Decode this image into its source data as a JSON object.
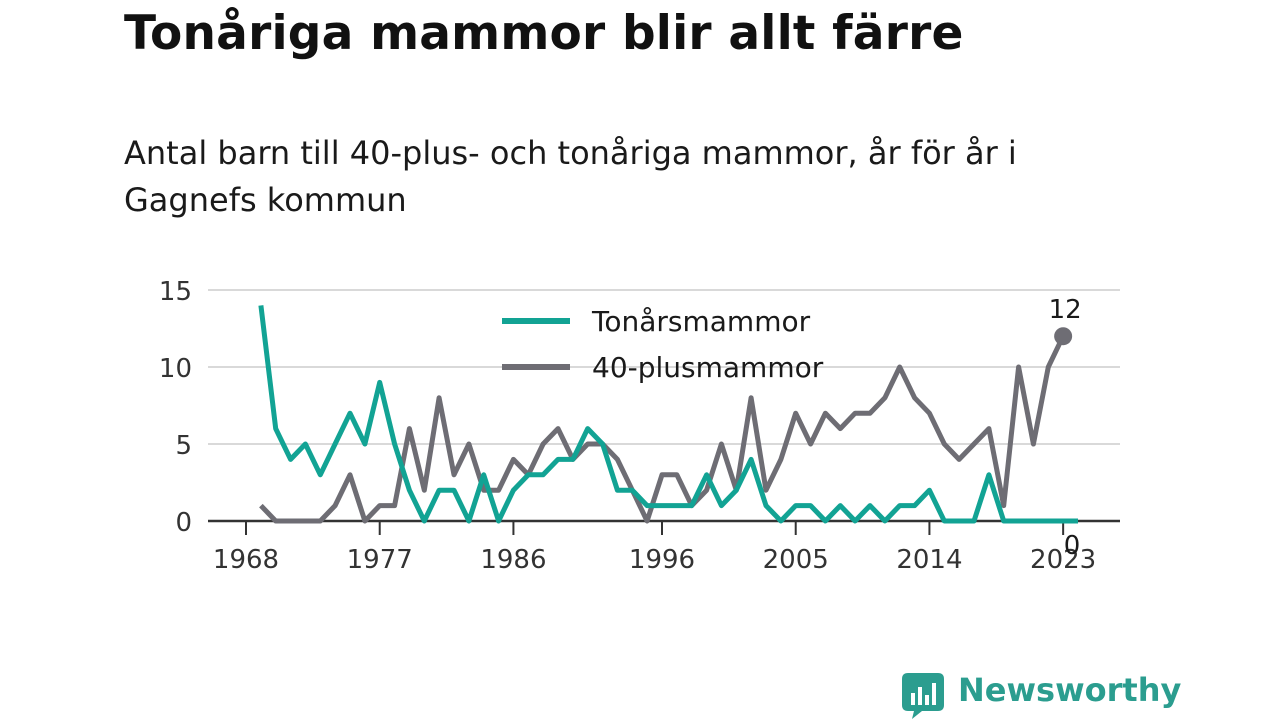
{
  "title": "Tonåriga mammor blir allt färre",
  "subtitle": "Antal barn till 40-plus- och tonåriga mammor, år för år i Gagnefs kommun",
  "brand": {
    "name": "Newsworthy"
  },
  "colors": {
    "teen": "#12a394",
    "forty": "#6e6d74",
    "grid": "#d9d9d9",
    "axis": "#333333",
    "brand": "#2b9d8f"
  },
  "chart_data": {
    "type": "line",
    "x": [
      1969,
      1970,
      1971,
      1972,
      1973,
      1974,
      1975,
      1976,
      1977,
      1978,
      1979,
      1980,
      1981,
      1982,
      1983,
      1984,
      1985,
      1986,
      1987,
      1988,
      1989,
      1990,
      1991,
      1992,
      1993,
      1994,
      1995,
      1996,
      1997,
      1998,
      1999,
      2000,
      2001,
      2002,
      2003,
      2004,
      2005,
      2006,
      2007,
      2008,
      2009,
      2010,
      2011,
      2012,
      2013,
      2014,
      2015,
      2016,
      2017,
      2018,
      2019,
      2020,
      2021,
      2022,
      2023,
      2024
    ],
    "series": [
      {
        "name": "Tonårsmammor",
        "color": "#12a394",
        "values": [
          14,
          6,
          4,
          5,
          3,
          5,
          7,
          5,
          9,
          5,
          2,
          0,
          2,
          2,
          0,
          3,
          0,
          2,
          3,
          3,
          4,
          4,
          6,
          5,
          2,
          2,
          1,
          1,
          1,
          1,
          3,
          1,
          2,
          4,
          1,
          0,
          1,
          1,
          0,
          1,
          0,
          1,
          0,
          1,
          1,
          2,
          0,
          0,
          0,
          3,
          0,
          0,
          0,
          0,
          0,
          0
        ]
      },
      {
        "name": "40-plusmammor",
        "color": "#6e6d74",
        "values": [
          1,
          0,
          0,
          0,
          0,
          1,
          3,
          0,
          1,
          1,
          6,
          2,
          8,
          3,
          5,
          2,
          2,
          4,
          3,
          5,
          6,
          4,
          5,
          5,
          4,
          2,
          0,
          3,
          3,
          1,
          2,
          5,
          2,
          8,
          2,
          4,
          7,
          5,
          7,
          6,
          7,
          7,
          8,
          10,
          8,
          7,
          5,
          4,
          5,
          6,
          1,
          10,
          5,
          10,
          12,
          null
        ]
      }
    ],
    "xticks": [
      "1968",
      "1977",
      "1986",
      "1996",
      "2005",
      "2014",
      "2023"
    ],
    "yticks": [
      "0",
      "5",
      "10",
      "15"
    ],
    "ylim": [
      0,
      15
    ],
    "xlim": [
      1968,
      2024
    ],
    "end_labels": {
      "teen": "0",
      "forty": "12"
    },
    "grid": true,
    "legend": "top-center"
  }
}
